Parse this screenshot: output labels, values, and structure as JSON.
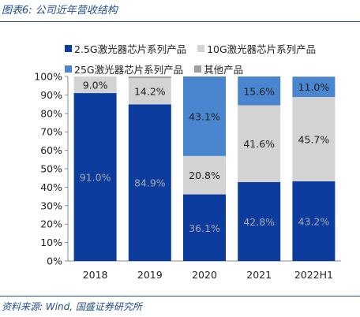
{
  "header": {
    "title": "图表6: 公司近年营收结构"
  },
  "footer": {
    "source": "资料来源: Wind, 国盛证券研究所"
  },
  "chart_data": {
    "type": "bar",
    "stacked": true,
    "categories": [
      "2018",
      "2019",
      "2020",
      "2021",
      "2022H1"
    ],
    "series": [
      {
        "name": "2.5G激光器芯片系列产品",
        "color": "#0b3c9e",
        "label_color": "#a9a9a9",
        "values": [
          91.0,
          84.9,
          36.1,
          42.8,
          43.2
        ]
      },
      {
        "name": "10G激光器芯片系列产品",
        "color": "#d3d3d3",
        "label_color": "#222222",
        "values": [
          9.0,
          14.2,
          20.8,
          41.6,
          45.7
        ]
      },
      {
        "name": "25G激光器芯片系列产品",
        "color": "#4a86cf",
        "label_color": "#222222",
        "values": [
          0,
          0,
          43.1,
          15.6,
          11.0
        ]
      },
      {
        "name": "其他产品",
        "color": "#9e9e9e",
        "label_color": "#222222",
        "values": [
          0,
          0.9,
          0,
          0,
          0
        ]
      }
    ],
    "data_labels": [
      [
        "91.0%",
        "84.9%",
        "36.1%",
        "42.8%",
        "43.2%"
      ],
      [
        "9.0%",
        "14.2%",
        "20.8%",
        "41.6%",
        "45.7%"
      ],
      [
        "",
        "",
        "43.1%",
        "15.6%",
        "11.0%"
      ],
      [
        "",
        "",
        "",
        "",
        ""
      ]
    ],
    "y_ticks": [
      "0%",
      "10%",
      "20%",
      "30%",
      "40%",
      "50%",
      "60%",
      "70%",
      "80%",
      "90%",
      "100%"
    ],
    "ylim": [
      0,
      100
    ],
    "legend_position": "top",
    "grid": false
  }
}
